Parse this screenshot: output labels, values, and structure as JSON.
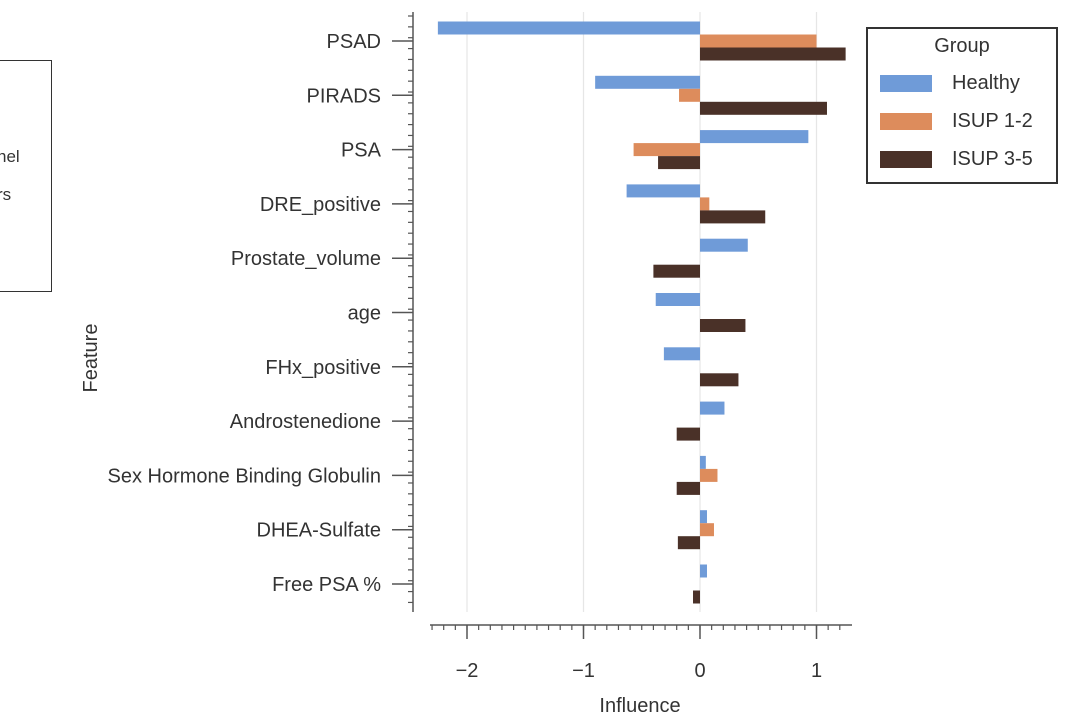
{
  "chart_data": {
    "type": "bar",
    "orientation": "horizontal",
    "ylabel": "Feature",
    "xlabel": "Influence",
    "categories": [
      "PSAD",
      "PIRADS",
      "PSA",
      "DRE_positive",
      "Prostate_volume",
      "age",
      "FHx_positive",
      "Androstenedione",
      "Sex Hormone Binding Globulin",
      "DHEA-Sulfate",
      "Free PSA %"
    ],
    "series": [
      {
        "name": "Healthy",
        "color": "#6f9bd8",
        "values": [
          -2.25,
          -0.9,
          0.93,
          -0.63,
          0.41,
          -0.38,
          -0.31,
          0.21,
          0.05,
          0.06,
          0.06
        ]
      },
      {
        "name": "ISUP 1-2",
        "color": "#dd8c5c",
        "values": [
          1.0,
          -0.18,
          -0.57,
          0.08,
          0,
          0,
          0,
          0,
          0.15,
          0.12,
          0
        ]
      },
      {
        "name": "ISUP 3-5",
        "color": "#4a3128",
        "values": [
          1.25,
          1.09,
          -0.36,
          0.56,
          -0.4,
          0.39,
          0.33,
          -0.2,
          -0.2,
          -0.19,
          -0.06
        ]
      }
    ],
    "xlim": [
      -2.4,
      1.35
    ],
    "xticks": [
      -2,
      -1,
      0,
      1
    ],
    "grid": "vertical",
    "legend": {
      "title": "Group",
      "position": "top-right"
    }
  },
  "left_panel": {
    "fragments": [
      "nel",
      "rs"
    ]
  }
}
